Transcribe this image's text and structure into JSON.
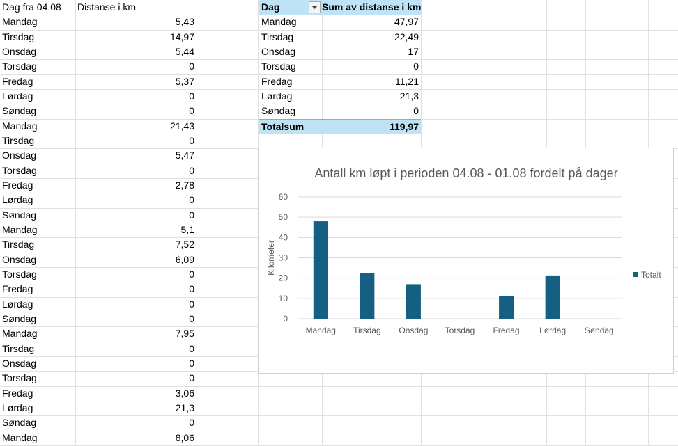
{
  "sheet": {
    "col_a_header": "Dag fra 04.08",
    "col_b_header": "Distanse i km",
    "rows": [
      {
        "day": "Mandag",
        "km": "5,43"
      },
      {
        "day": "Tirsdag",
        "km": "14,97"
      },
      {
        "day": "Onsdag",
        "km": "5,44"
      },
      {
        "day": "Torsdag",
        "km": "0"
      },
      {
        "day": "Fredag",
        "km": "5,37"
      },
      {
        "day": "Lørdag",
        "km": "0"
      },
      {
        "day": "Søndag",
        "km": "0"
      },
      {
        "day": "Mandag",
        "km": "21,43"
      },
      {
        "day": "Tirsdag",
        "km": "0"
      },
      {
        "day": "Onsdag",
        "km": "5,47"
      },
      {
        "day": "Torsdag",
        "km": "0"
      },
      {
        "day": "Fredag",
        "km": "2,78"
      },
      {
        "day": "Lørdag",
        "km": "0"
      },
      {
        "day": "Søndag",
        "km": "0"
      },
      {
        "day": "Mandag",
        "km": "5,1"
      },
      {
        "day": "Tirsdag",
        "km": "7,52"
      },
      {
        "day": "Onsdag",
        "km": "6,09"
      },
      {
        "day": "Torsdag",
        "km": "0"
      },
      {
        "day": "Fredag",
        "km": "0"
      },
      {
        "day": "Lørdag",
        "km": "0"
      },
      {
        "day": "Søndag",
        "km": "0"
      },
      {
        "day": "Mandag",
        "km": "7,95"
      },
      {
        "day": "Tirsdag",
        "km": "0"
      },
      {
        "day": "Onsdag",
        "km": "0"
      },
      {
        "day": "Torsdag",
        "km": "0"
      },
      {
        "day": "Fredag",
        "km": "3,06"
      },
      {
        "day": "Lørdag",
        "km": "21,3"
      },
      {
        "day": "Søndag",
        "km": "0"
      },
      {
        "day": "Mandag",
        "km": "8,06"
      }
    ]
  },
  "pivot": {
    "header_day": "Dag",
    "header_sum": "Sum av distanse i km",
    "rows": [
      {
        "day": "Mandag",
        "sum": "47,97"
      },
      {
        "day": "Tirsdag",
        "sum": "22,49"
      },
      {
        "day": "Onsdag",
        "sum": "17"
      },
      {
        "day": "Torsdag",
        "sum": "0"
      },
      {
        "day": "Fredag",
        "sum": "11,21"
      },
      {
        "day": "Lørdag",
        "sum": "21,3"
      },
      {
        "day": "Søndag",
        "sum": "0"
      }
    ],
    "total_label": "Totalsum",
    "total_value": "119,97",
    "filter_icon": "dropdown-arrow-icon"
  },
  "chart_data": {
    "type": "bar",
    "title": "Antall km løpt i perioden 04.08 - 01.08 fordelt på dager",
    "ylabel": "Kilometer",
    "xlabel": "",
    "categories": [
      "Mandag",
      "Tirsdag",
      "Onsdag",
      "Torsdag",
      "Fredag",
      "Lørdag",
      "Søndag"
    ],
    "series": [
      {
        "name": "Totalt",
        "values": [
          47.97,
          22.49,
          17,
          0,
          11.21,
          21.3,
          0
        ]
      }
    ],
    "yticks": [
      0,
      10,
      20,
      30,
      40,
      50,
      60
    ],
    "ylim": [
      0,
      60
    ],
    "grid": true,
    "legend": "right",
    "bar_color": "#156082",
    "grid_color": "#d9d9d9"
  }
}
